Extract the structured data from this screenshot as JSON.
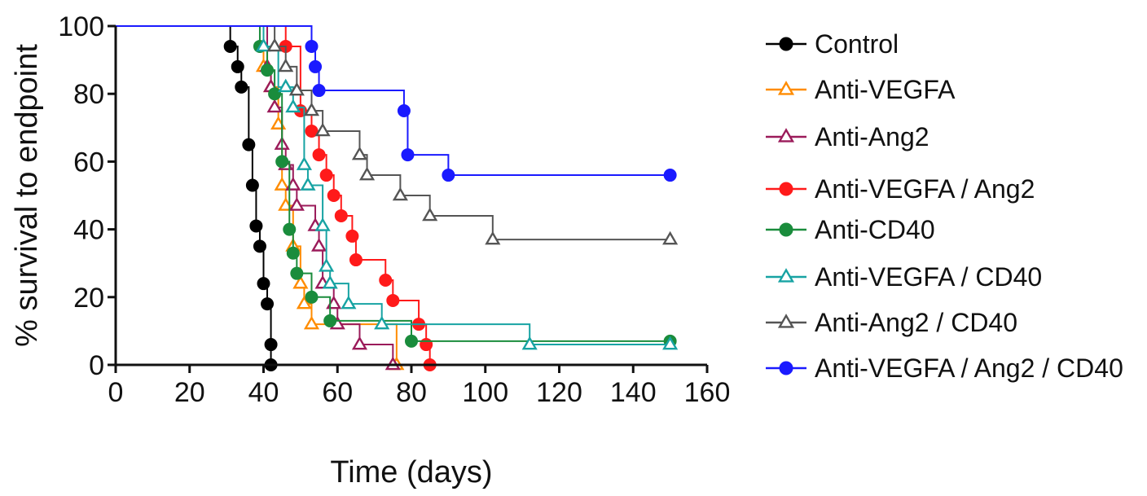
{
  "chart_data": {
    "type": "line",
    "subtype": "step",
    "xlabel": "Time (days)",
    "ylabel": "% survival to endpoint",
    "xlim": [
      0,
      160
    ],
    "ylim": [
      0,
      100
    ],
    "xticks": [
      0,
      20,
      40,
      60,
      80,
      100,
      120,
      140,
      160
    ],
    "yticks": [
      0,
      20,
      40,
      60,
      80,
      100
    ],
    "grid": false,
    "legend_position": "right",
    "series": [
      {
        "name": "Control",
        "color": "#000000",
        "marker": "filled-circle",
        "x": [
          0,
          31,
          33,
          34,
          36,
          37,
          38,
          39,
          40,
          41,
          42
        ],
        "y": [
          100,
          94,
          88,
          82,
          65,
          53,
          41,
          35,
          24,
          18,
          0
        ],
        "markers_x": [
          31,
          33,
          34,
          36,
          37,
          38,
          39,
          40,
          41,
          42,
          42
        ],
        "markers_y": [
          94,
          88,
          82,
          65,
          53,
          41,
          35,
          24,
          18,
          6,
          0
        ]
      },
      {
        "name": "Anti-VEGFA",
        "color": "#ff8c00",
        "marker": "open-triangle",
        "x": [
          0,
          40,
          42,
          44,
          45,
          46,
          48,
          50,
          51,
          53,
          76
        ],
        "y": [
          100,
          88,
          82,
          71,
          53,
          47,
          35,
          24,
          18,
          12,
          0
        ],
        "markers_x": [
          40,
          42,
          44,
          45,
          46,
          48,
          50,
          51,
          53,
          76
        ],
        "markers_y": [
          88,
          82,
          71,
          53,
          47,
          35,
          24,
          18,
          12,
          0
        ]
      },
      {
        "name": "Anti-Ang2",
        "color": "#9b1b5a",
        "marker": "open-triangle",
        "x": [
          0,
          41,
          42,
          43,
          45,
          46,
          48,
          49,
          54,
          55,
          56,
          59,
          60,
          66,
          75
        ],
        "y": [
          100,
          88,
          82,
          76,
          65,
          59,
          53,
          47,
          41,
          35,
          24,
          18,
          12,
          6,
          0
        ],
        "markers_x": [
          41,
          42,
          43,
          45,
          46,
          48,
          49,
          54,
          55,
          56,
          59,
          60,
          66,
          75
        ],
        "markers_y": [
          88,
          82,
          76,
          65,
          59,
          53,
          47,
          41,
          35,
          24,
          18,
          12,
          6,
          0
        ]
      },
      {
        "name": "Anti-VEGFA / Ang2",
        "color": "#ff1a1a",
        "marker": "filled-circle",
        "x": [
          0,
          46,
          50,
          53,
          55,
          57,
          59,
          61,
          64,
          65,
          73,
          75,
          82,
          84,
          85
        ],
        "y": [
          100,
          94,
          75,
          69,
          62,
          56,
          50,
          44,
          38,
          31,
          25,
          19,
          12,
          6,
          0
        ],
        "markers_x": [
          46,
          50,
          53,
          55,
          57,
          59,
          61,
          64,
          65,
          73,
          75,
          82,
          84,
          85
        ],
        "markers_y": [
          94,
          75,
          69,
          62,
          56,
          50,
          44,
          38,
          31,
          25,
          19,
          12,
          6,
          0
        ]
      },
      {
        "name": "Anti-CD40",
        "color": "#1a8c3c",
        "marker": "filled-circle",
        "x": [
          0,
          39,
          41,
          43,
          45,
          47,
          48,
          49,
          53,
          58,
          80,
          150
        ],
        "y": [
          100,
          94,
          87,
          80,
          60,
          40,
          33,
          27,
          20,
          13,
          7,
          7
        ],
        "markers_x": [
          39,
          41,
          43,
          45,
          47,
          48,
          49,
          53,
          58,
          80,
          150
        ],
        "markers_y": [
          94,
          87,
          80,
          60,
          40,
          33,
          27,
          20,
          13,
          7,
          7
        ]
      },
      {
        "name": "Anti-VEGFA / CD40",
        "color": "#17a3a3",
        "marker": "open-triangle",
        "x": [
          0,
          40,
          44,
          46,
          48,
          51,
          52,
          56,
          57,
          58,
          63,
          72,
          112,
          150
        ],
        "y": [
          100,
          94,
          82,
          82,
          76,
          59,
          53,
          41,
          29,
          24,
          18,
          12,
          6,
          6
        ],
        "markers_x": [
          40,
          46,
          48,
          51,
          52,
          56,
          57,
          58,
          63,
          72,
          112,
          150
        ],
        "markers_y": [
          94,
          82,
          76,
          59,
          53,
          41,
          29,
          24,
          18,
          12,
          6,
          6
        ]
      },
      {
        "name": "Anti-Ang2 / CD40",
        "color": "#555555",
        "marker": "open-triangle",
        "x": [
          0,
          43,
          46,
          49,
          53,
          56,
          66,
          68,
          77,
          85,
          102,
          150
        ],
        "y": [
          100,
          94,
          88,
          81,
          75,
          69,
          62,
          56,
          50,
          44,
          37,
          37
        ],
        "markers_x": [
          43,
          46,
          49,
          53,
          56,
          66,
          68,
          77,
          85,
          102,
          150
        ],
        "markers_y": [
          94,
          88,
          81,
          75,
          69,
          62,
          56,
          50,
          44,
          37,
          37
        ]
      },
      {
        "name": "Anti-VEGFA / Ang2 / CD40",
        "color": "#1a1aff",
        "marker": "filled-circle",
        "x": [
          0,
          53,
          54,
          55,
          78,
          79,
          90,
          150
        ],
        "y": [
          100,
          94,
          88,
          81,
          75,
          62,
          56,
          56
        ],
        "markers_x": [
          53,
          54,
          55,
          78,
          79,
          90,
          150
        ],
        "markers_y": [
          94,
          88,
          81,
          75,
          62,
          56,
          56
        ]
      }
    ]
  }
}
